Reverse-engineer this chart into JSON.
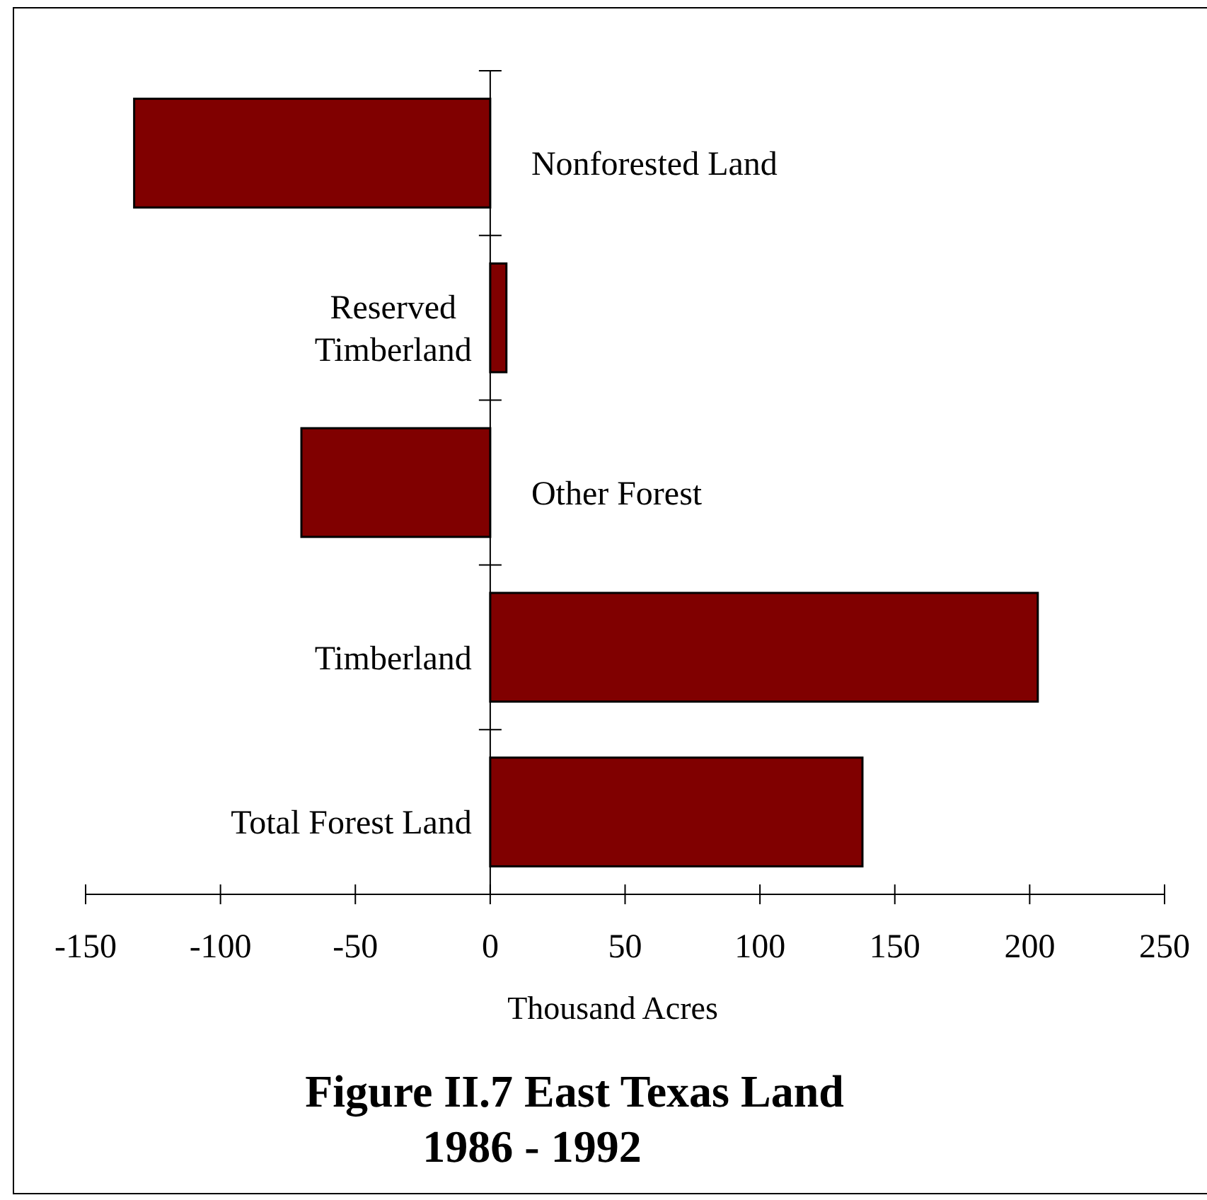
{
  "chart_data": {
    "type": "bar",
    "orientation": "horizontal",
    "title": "Figure II.7 East Texas Land",
    "subtitle": "1986 - 1992",
    "xlabel": "Thousand Acres",
    "categories": [
      "Nonforested Land",
      "Reserved\nTimberland",
      "Other Forest",
      "Timberland",
      "Total Forest Land"
    ],
    "values": [
      -132,
      6,
      -70,
      203,
      138
    ],
    "color": "#800000",
    "xlim": [
      -150,
      250
    ],
    "xticks": [
      -150,
      -100,
      -50,
      0,
      50,
      100,
      150,
      200,
      250
    ]
  }
}
